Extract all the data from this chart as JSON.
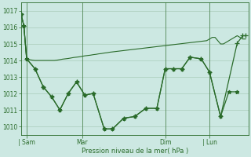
{
  "bg_color": "#cce8e2",
  "grid_color": "#aaccba",
  "line_color": "#2a6b2a",
  "ylim": [
    1009.5,
    1017.5
  ],
  "yticks": [
    1010,
    1011,
    1012,
    1013,
    1014,
    1015,
    1016,
    1017
  ],
  "xlabel": "Pression niveau de la mer( hPa )",
  "xtick_labels": [
    "| Sam",
    "Mar",
    "Dim",
    "| Lun"
  ],
  "xtick_positions": [
    2,
    22,
    52,
    68
  ],
  "xlim": [
    0,
    82
  ],
  "smooth_x": [
    0,
    1,
    2,
    3,
    4,
    5,
    6,
    7,
    8,
    9,
    10,
    11,
    12,
    13,
    14,
    15,
    16,
    17,
    18,
    19,
    20,
    21,
    22,
    23,
    24,
    25,
    26,
    27,
    28,
    29,
    30,
    31,
    32,
    33,
    34,
    35,
    36,
    37,
    38,
    39,
    40,
    41,
    42,
    43,
    44,
    45,
    46,
    47,
    48,
    49,
    50,
    51,
    52,
    53,
    54,
    55,
    56,
    57,
    58,
    59,
    60,
    61,
    62,
    63,
    64,
    65,
    66,
    67,
    68,
    69,
    70,
    71,
    72,
    73,
    74,
    75,
    76,
    77,
    78,
    79,
    80,
    81
  ],
  "smooth_y": [
    1016.8,
    1016.1,
    1014.1,
    1014.05,
    1014.02,
    1014.0,
    1014.0,
    1014.0,
    1014.0,
    1014.0,
    1014.0,
    1014.0,
    1014.0,
    1014.02,
    1014.05,
    1014.08,
    1014.1,
    1014.12,
    1014.15,
    1014.18,
    1014.2,
    1014.22,
    1014.25,
    1014.28,
    1014.3,
    1014.32,
    1014.35,
    1014.37,
    1014.4,
    1014.42,
    1014.45,
    1014.47,
    1014.5,
    1014.52,
    1014.54,
    1014.56,
    1014.58,
    1014.6,
    1014.62,
    1014.64,
    1014.66,
    1014.68,
    1014.7,
    1014.72,
    1014.74,
    1014.76,
    1014.78,
    1014.8,
    1014.82,
    1014.84,
    1014.86,
    1014.88,
    1014.9,
    1014.92,
    1014.94,
    1014.96,
    1014.98,
    1015.0,
    1015.02,
    1015.04,
    1015.06,
    1015.08,
    1015.1,
    1015.12,
    1015.14,
    1015.16,
    1015.18,
    1015.2,
    1015.3,
    1015.4,
    1015.4,
    1015.2,
    1015.0,
    1015.0,
    1015.1,
    1015.2,
    1015.3,
    1015.4,
    1015.5,
    1015.4,
    1015.3,
    1015.3
  ],
  "jagged1_x": [
    0,
    1,
    2,
    5,
    8,
    11,
    14,
    17,
    20,
    23,
    26,
    30,
    33,
    37,
    41,
    45,
    49,
    52,
    55,
    58,
    61,
    65,
    68,
    72,
    75,
    78
  ],
  "jagged1_y": [
    1016.8,
    1016.1,
    1014.1,
    1013.5,
    1012.4,
    1011.8,
    1011.0,
    1012.0,
    1012.7,
    1011.9,
    1012.0,
    1009.85,
    1009.85,
    1010.5,
    1010.6,
    1011.1,
    1011.1,
    1013.5,
    1013.5,
    1013.5,
    1014.2,
    1014.1,
    1013.3,
    1010.6,
    1012.1,
    1012.1
  ],
  "jagged2_x": [
    0,
    1,
    2,
    5,
    8,
    11,
    14,
    17,
    20,
    23,
    26,
    30,
    33,
    37,
    41,
    45,
    49,
    52,
    55,
    58,
    61,
    65,
    68,
    72,
    78,
    80,
    81
  ],
  "jagged2_y": [
    1016.8,
    1016.1,
    1014.1,
    1013.5,
    1012.4,
    1011.8,
    1011.0,
    1012.0,
    1012.7,
    1011.9,
    1012.0,
    1009.85,
    1009.85,
    1010.5,
    1010.6,
    1011.1,
    1011.1,
    1013.5,
    1013.5,
    1013.5,
    1014.2,
    1014.1,
    1013.3,
    1010.6,
    1015.05,
    1015.5,
    1015.5
  ]
}
